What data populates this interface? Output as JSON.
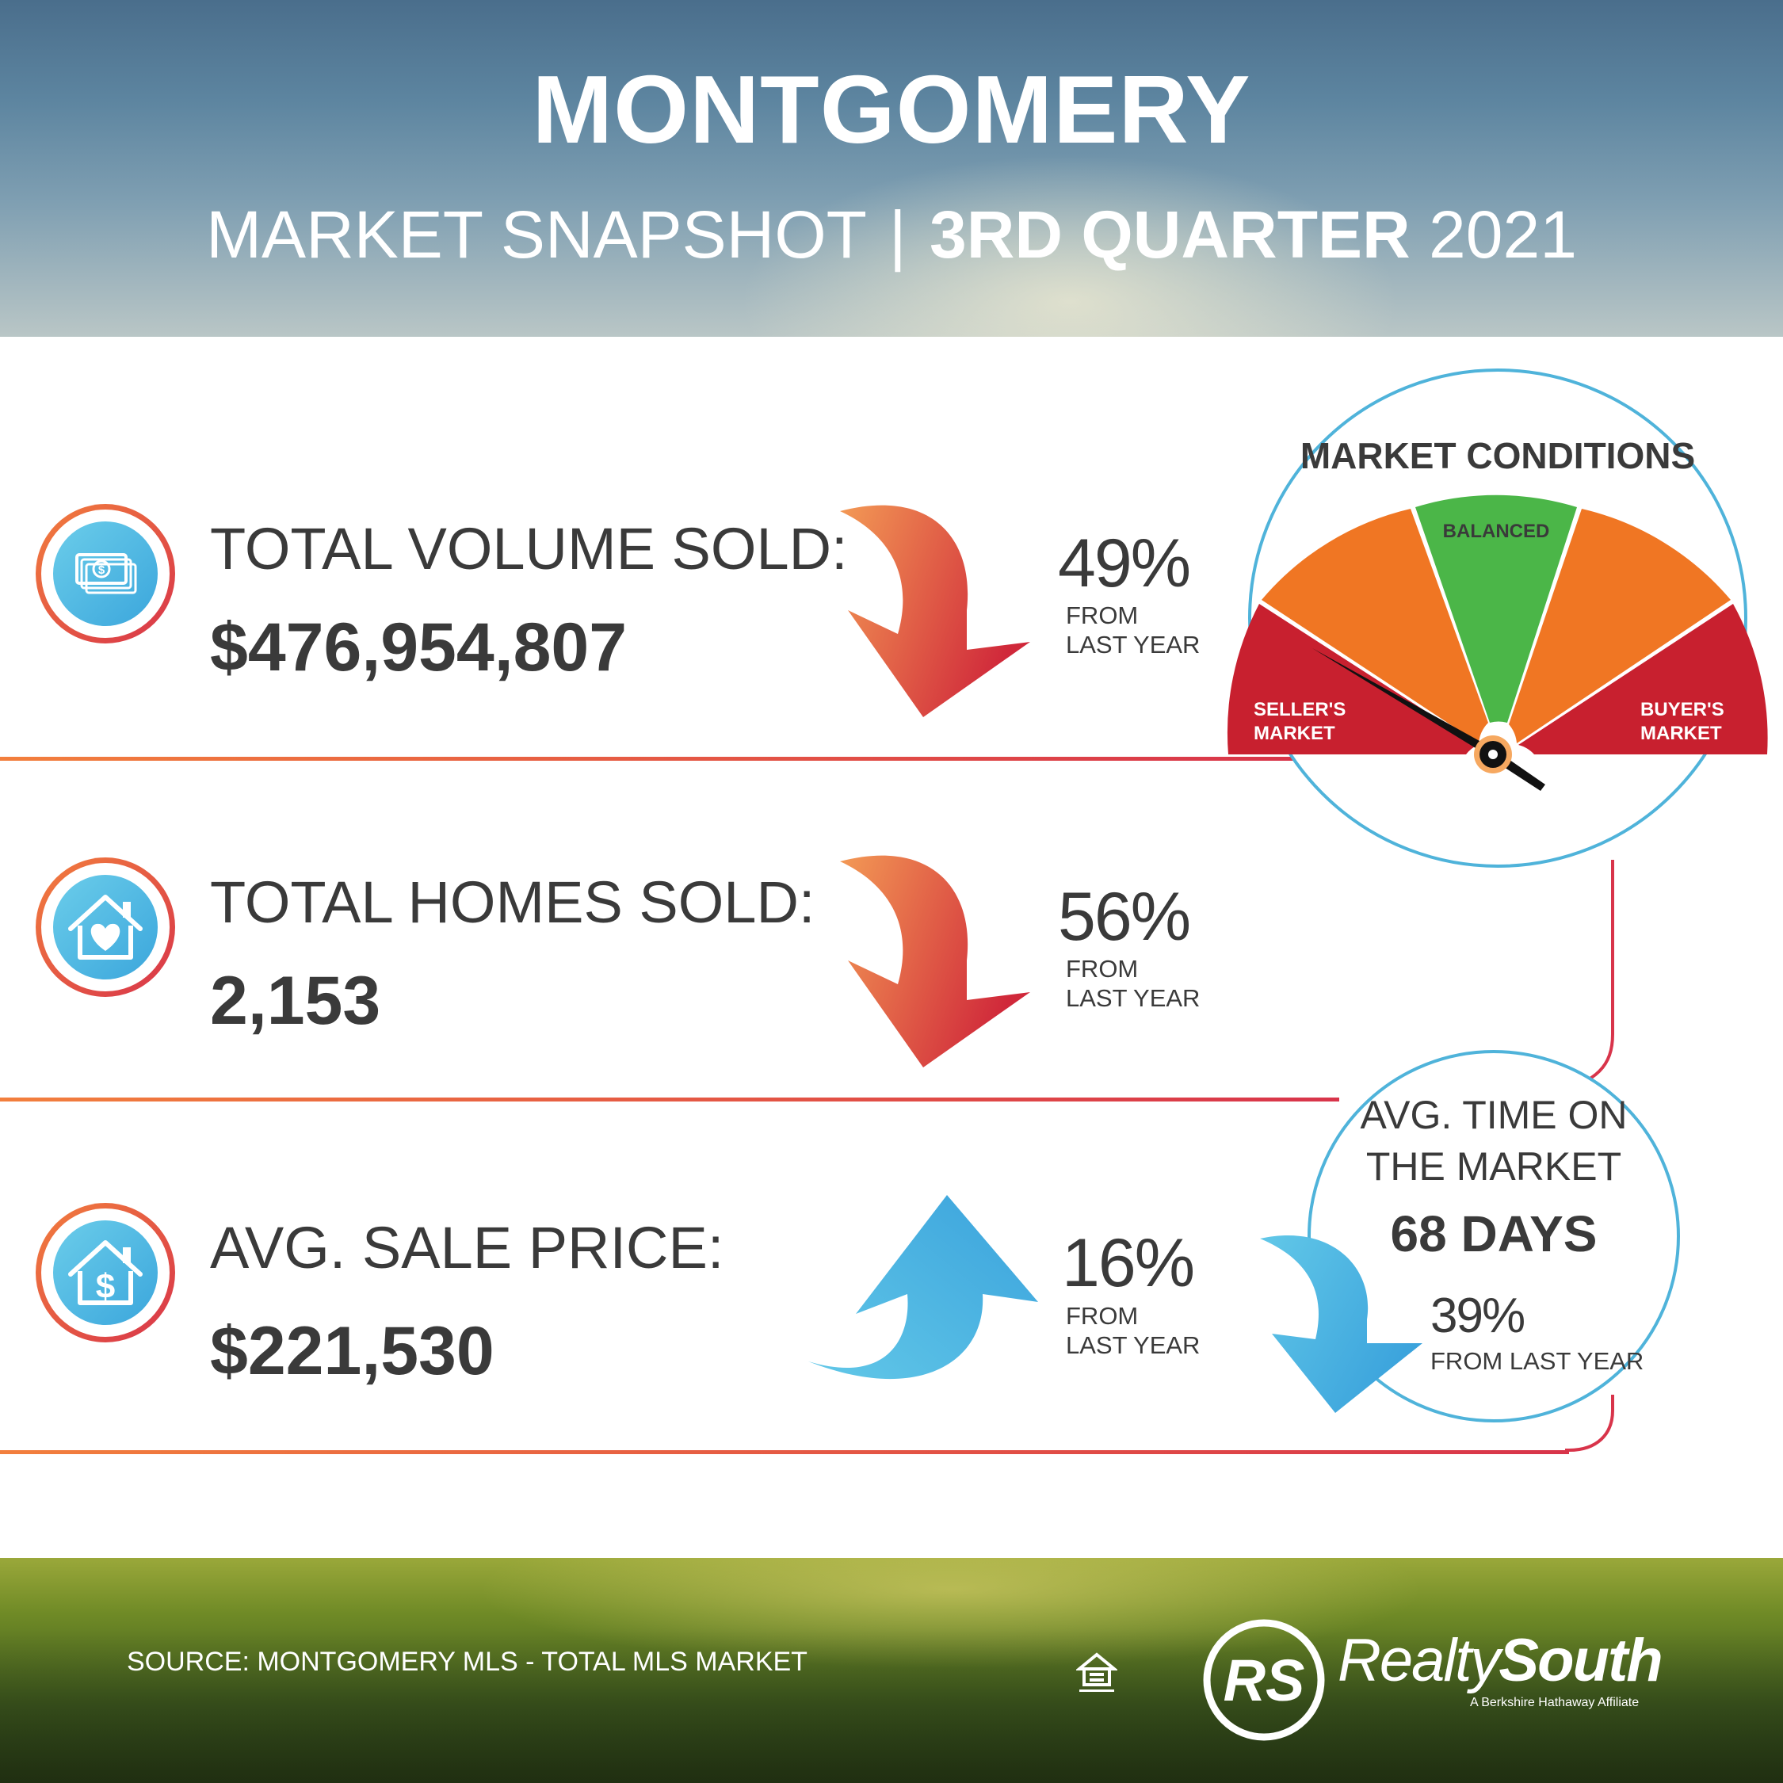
{
  "header": {
    "title": "MONTGOMERY",
    "subtitle_main": "MARKET SNAPSHOT",
    "subtitle_sep": "|",
    "subtitle_quarter": "3RD QUARTER",
    "subtitle_year": "2021"
  },
  "stats": [
    {
      "label": "TOTAL VOLUME SOLD:",
      "value": "$476,954,807",
      "pct": "49%",
      "from_line1": "FROM",
      "from_line2": "LAST YEAR",
      "direction": "down",
      "icon": "money-icon"
    },
    {
      "label": "TOTAL HOMES SOLD:",
      "value": "2,153",
      "pct": "56%",
      "from_line1": "FROM",
      "from_line2": "LAST YEAR",
      "direction": "down",
      "icon": "house-heart-icon"
    },
    {
      "label": "AVG. SALE PRICE:",
      "value": "$221,530",
      "pct": "16%",
      "from_line1": "FROM",
      "from_line2": "LAST YEAR",
      "direction": "up",
      "icon": "house-dollar-icon"
    }
  ],
  "market_conditions": {
    "title": "MARKET CONDITIONS",
    "balanced": "BALANCED",
    "seller_line1": "SELLER'S",
    "seller_line2": "MARKET",
    "buyer_line1": "BUYER'S",
    "buyer_line2": "MARKET",
    "colors": {
      "seller": "#c8202f",
      "middle": "#f07623",
      "balanced": "#4bb648",
      "buyer": "#c8202f"
    }
  },
  "time_on_market": {
    "label_line1": "AVG. TIME ON",
    "label_line2": "THE MARKET",
    "days": "68 DAYS",
    "pct": "39%",
    "from": "FROM LAST YEAR",
    "direction": "down"
  },
  "footer": {
    "source": "SOURCE: MONTGOMERY MLS - TOTAL MLS MARKET",
    "brand_light": "Realty",
    "brand_bold": "South",
    "logo_mark": "RS",
    "tagline": "A Berkshire Hathaway Affiliate"
  }
}
